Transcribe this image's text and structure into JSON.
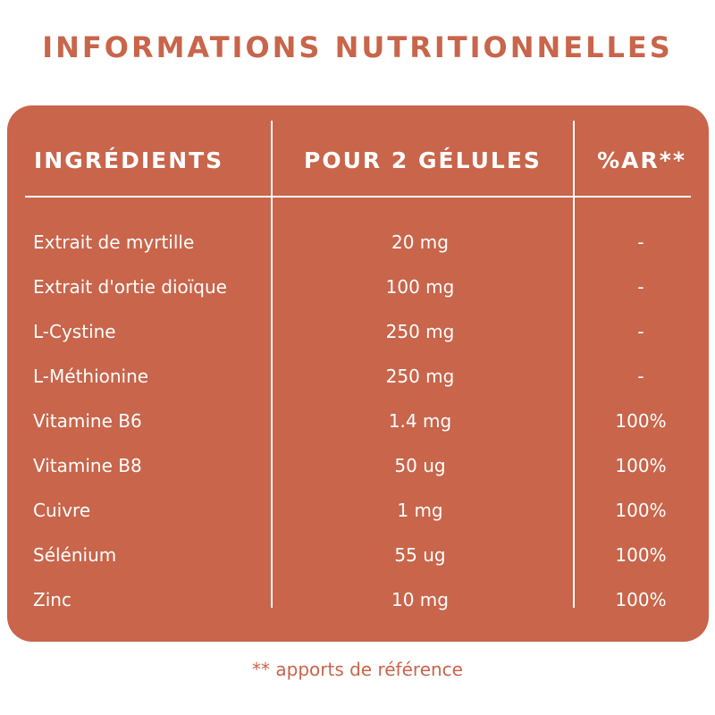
{
  "title": "INFORMATIONS NUTRITIONNELLES",
  "table": {
    "headers": [
      "INGRÉDIENTS",
      "POUR 2 GÉLULES",
      "%AR**"
    ],
    "rows": [
      {
        "name": "Extrait de myrtille",
        "amount": "20 mg",
        "ar": "-"
      },
      {
        "name": "Extrait d'ortie dioïque",
        "amount": "100 mg",
        "ar": "-"
      },
      {
        "name": "L-Cystine",
        "amount": "250 mg",
        "ar": "-"
      },
      {
        "name": "L-Méthionine",
        "amount": "250 mg",
        "ar": "-"
      },
      {
        "name": "Vitamine B6",
        "amount": "1.4 mg",
        "ar": "100%"
      },
      {
        "name": "Vitamine B8",
        "amount": "50 ug",
        "ar": "100%"
      },
      {
        "name": "Cuivre",
        "amount": "1 mg",
        "ar": "100%"
      },
      {
        "name": "Sélénium",
        "amount": "55 ug",
        "ar": "100%"
      },
      {
        "name": "Zinc",
        "amount": "10 mg",
        "ar": "100%"
      }
    ]
  },
  "footnote": "** apports de référence",
  "colors": {
    "accent": "#c8654b",
    "text_on_accent": "#ffffff"
  }
}
